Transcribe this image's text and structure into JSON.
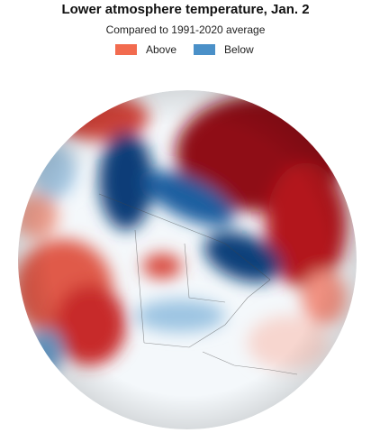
{
  "header": {
    "title": "Lower atmosphere temperature, Jan. 2",
    "subtitle": "Compared to 1991-2020 average"
  },
  "legend": [
    {
      "label": "Above",
      "color": "#f26b4f"
    },
    {
      "label": "Below",
      "color": "#4a90c8"
    }
  ]
}
